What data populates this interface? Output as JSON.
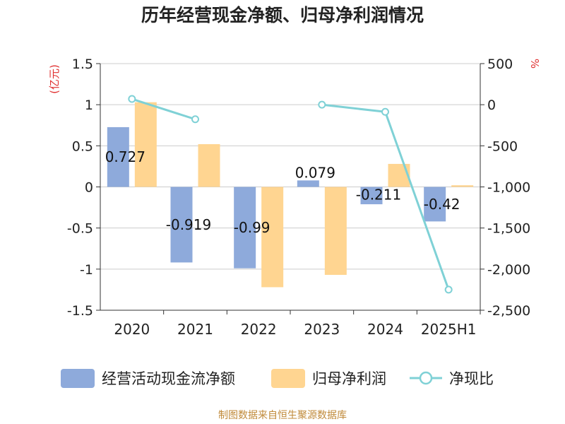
{
  "chart_data": {
    "type": "bar",
    "title": "历年经营现金净额、归母净利润情况",
    "categories": [
      "2020",
      "2021",
      "2022",
      "2023",
      "2024",
      "2025H1"
    ],
    "y_left": {
      "unit_label": "(亿元)",
      "ylim": [
        -1.5,
        1.5
      ],
      "ticks": [
        "1.5",
        "1",
        "0.5",
        "0",
        "-0.5",
        "-1",
        "-1.5"
      ],
      "tick_values": [
        1.5,
        1,
        0.5,
        0,
        -0.5,
        -1,
        -1.5
      ]
    },
    "y_right": {
      "unit_label": "%",
      "ylim": [
        -2500,
        500
      ],
      "ticks": [
        "500",
        "0",
        "-500",
        "-1,000",
        "-1,500",
        "-2,000",
        "-2,500"
      ],
      "tick_values": [
        500,
        0,
        -500,
        -1000,
        -1500,
        -2000,
        -2500
      ]
    },
    "series": [
      {
        "name": "经营活动现金流净额",
        "type": "bar",
        "axis": "left",
        "color": "#8eaadb",
        "values": [
          0.727,
          -0.919,
          -0.99,
          0.079,
          -0.211,
          -0.42
        ],
        "labels": [
          "0.727",
          "-0.919",
          "-0.99",
          "0.079",
          "-0.211",
          "-0.42"
        ]
      },
      {
        "name": "归母净利润",
        "type": "bar",
        "axis": "left",
        "color": "#ffd591",
        "values": [
          1.03,
          0.52,
          -1.22,
          -1.07,
          0.28,
          0.02
        ]
      },
      {
        "name": "净现比",
        "type": "line",
        "axis": "right",
        "color": "#7fd1d6",
        "values": [
          70,
          -177,
          null,
          0,
          -87,
          -2250
        ]
      }
    ],
    "grid": true,
    "legend_position": "bottom"
  },
  "source": "制图数据来自恒生聚源数据库",
  "colors": {
    "axis": "#333333",
    "grid": "#cccccc",
    "unit_label": "#e03030",
    "source": "#c08a3a"
  }
}
